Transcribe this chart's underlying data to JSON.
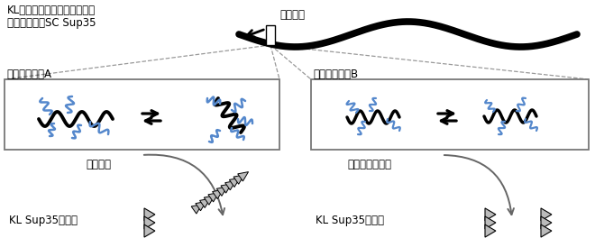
{
  "title_line1": "KL種由来のアミノ酸残基置換",
  "title_line2": "を含む可溶性SC Sup35",
  "label_region": "置換領域",
  "label_pattern_a": "置換パターンA",
  "label_pattern_b": "置換パターンB",
  "label_reaction_a": "凝集反応",
  "label_reaction_b": "反応は起きない",
  "label_aggregate_a": "KL Sup35凝集体",
  "label_aggregate_b": "KL Sup35凝集体",
  "black_color": "#000000",
  "blue_color": "#5588cc",
  "gray_color": "#666666",
  "light_gray": "#bbbbbb",
  "bg_color": "#ffffff"
}
